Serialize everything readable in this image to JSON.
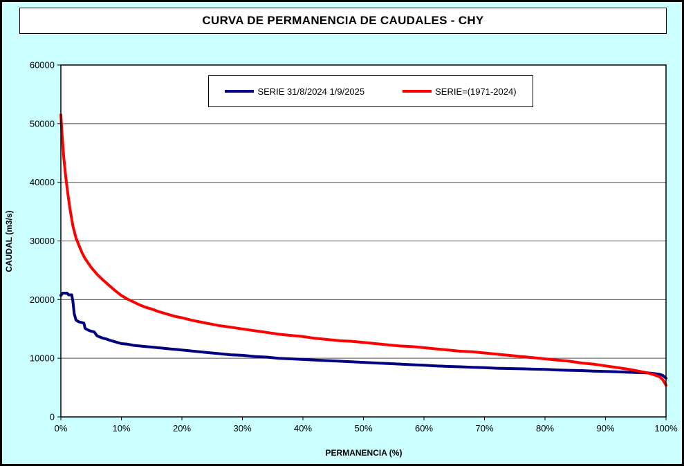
{
  "window": {
    "background": "#CCFFFF",
    "border_color": "#000000"
  },
  "title": {
    "text": "CURVA DE PERMANENCIA DE CAUDALES - CHY"
  },
  "axes": {
    "x": {
      "label": "PERMANENCIA (%)",
      "min": 0,
      "max": 100,
      "tick_values": [
        0,
        10,
        20,
        30,
        40,
        50,
        60,
        70,
        80,
        90,
        100
      ],
      "tick_labels": [
        "0%",
        "10%",
        "20%",
        "30%",
        "40%",
        "50%",
        "60%",
        "70%",
        "80%",
        "90%",
        "100%"
      ]
    },
    "y": {
      "label": "CAUDAL (m3/s)",
      "min": 0,
      "max": 60000,
      "tick_values": [
        0,
        10000,
        20000,
        30000,
        40000,
        50000,
        60000
      ],
      "tick_labels": [
        "0",
        "10000",
        "20000",
        "30000",
        "40000",
        "50000",
        "60000"
      ]
    }
  },
  "legend": {
    "entries": [
      {
        "label": "SERIE 31/8/2024 1/9/2025",
        "color": "#000080"
      },
      {
        "label": "SERIE=(1971-2024)",
        "color": "#FF0000"
      }
    ]
  },
  "chart_data": {
    "type": "line",
    "title": "CURVA DE PERMANENCIA DE CAUDALES - CHY",
    "xlabel": "PERMANENCIA (%)",
    "ylabel": "CAUDAL (m3/s)",
    "xlim": [
      0,
      100
    ],
    "ylim": [
      0,
      60000
    ],
    "grid": "horizontal",
    "legend_position": "top-center-inside",
    "series": [
      {
        "name": "SERIE 31/8/2024 1/9/2025",
        "color": "#000080",
        "points": [
          [
            0,
            20700
          ],
          [
            0.3,
            21100
          ],
          [
            1.0,
            21100
          ],
          [
            1.3,
            20800
          ],
          [
            1.8,
            20800
          ],
          [
            2.0,
            19600
          ],
          [
            2.2,
            17600
          ],
          [
            2.5,
            16500
          ],
          [
            3.0,
            16200
          ],
          [
            3.8,
            16000
          ],
          [
            4.0,
            15100
          ],
          [
            4.5,
            14800
          ],
          [
            5.0,
            14600
          ],
          [
            5.5,
            14500
          ],
          [
            6.0,
            13800
          ],
          [
            6.5,
            13600
          ],
          [
            7.0,
            13400
          ],
          [
            7.5,
            13300
          ],
          [
            8.0,
            13100
          ],
          [
            9.0,
            12800
          ],
          [
            10,
            12500
          ],
          [
            11,
            12400
          ],
          [
            12,
            12200
          ],
          [
            13,
            12100
          ],
          [
            14,
            12000
          ],
          [
            15,
            11900
          ],
          [
            16,
            11800
          ],
          [
            17,
            11700
          ],
          [
            18,
            11600
          ],
          [
            19,
            11500
          ],
          [
            20,
            11400
          ],
          [
            22,
            11200
          ],
          [
            24,
            11000
          ],
          [
            26,
            10800
          ],
          [
            28,
            10600
          ],
          [
            30,
            10500
          ],
          [
            32,
            10300
          ],
          [
            34,
            10200
          ],
          [
            36,
            10000
          ],
          [
            38,
            9900
          ],
          [
            40,
            9800
          ],
          [
            42,
            9700
          ],
          [
            44,
            9600
          ],
          [
            46,
            9500
          ],
          [
            48,
            9400
          ],
          [
            50,
            9300
          ],
          [
            52,
            9200
          ],
          [
            54,
            9100
          ],
          [
            56,
            9000
          ],
          [
            58,
            8900
          ],
          [
            60,
            8800
          ],
          [
            62,
            8700
          ],
          [
            64,
            8600
          ],
          [
            66,
            8550
          ],
          [
            68,
            8450
          ],
          [
            70,
            8400
          ],
          [
            72,
            8300
          ],
          [
            74,
            8250
          ],
          [
            76,
            8200
          ],
          [
            78,
            8150
          ],
          [
            80,
            8100
          ],
          [
            82,
            8000
          ],
          [
            84,
            7950
          ],
          [
            86,
            7900
          ],
          [
            88,
            7800
          ],
          [
            90,
            7750
          ],
          [
            92,
            7700
          ],
          [
            94,
            7600
          ],
          [
            96,
            7550
          ],
          [
            97,
            7500
          ],
          [
            98,
            7400
          ],
          [
            99,
            7250
          ],
          [
            99.5,
            7050
          ],
          [
            100,
            6600
          ]
        ]
      },
      {
        "name": "SERIE=(1971-2024)",
        "color": "#FF0000",
        "points": [
          [
            0,
            51500
          ],
          [
            0.2,
            48000
          ],
          [
            0.5,
            44000
          ],
          [
            0.8,
            41000
          ],
          [
            1.1,
            38500
          ],
          [
            1.5,
            35500
          ],
          [
            2,
            32500
          ],
          [
            2.5,
            30500
          ],
          [
            3,
            29200
          ],
          [
            3.5,
            28000
          ],
          [
            4,
            27000
          ],
          [
            5,
            25500
          ],
          [
            6,
            24300
          ],
          [
            7,
            23300
          ],
          [
            8,
            22400
          ],
          [
            9,
            21500
          ],
          [
            10,
            20700
          ],
          [
            11,
            20100
          ],
          [
            12,
            19600
          ],
          [
            13,
            19100
          ],
          [
            14,
            18700
          ],
          [
            15,
            18400
          ],
          [
            16,
            18000
          ],
          [
            17,
            17700
          ],
          [
            18,
            17400
          ],
          [
            19,
            17100
          ],
          [
            20,
            16900
          ],
          [
            22,
            16400
          ],
          [
            24,
            16000
          ],
          [
            26,
            15600
          ],
          [
            28,
            15300
          ],
          [
            30,
            15000
          ],
          [
            32,
            14700
          ],
          [
            34,
            14400
          ],
          [
            36,
            14100
          ],
          [
            38,
            13900
          ],
          [
            40,
            13700
          ],
          [
            42,
            13400
          ],
          [
            44,
            13200
          ],
          [
            46,
            13000
          ],
          [
            48,
            12900
          ],
          [
            50,
            12700
          ],
          [
            52,
            12500
          ],
          [
            54,
            12300
          ],
          [
            56,
            12100
          ],
          [
            58,
            12000
          ],
          [
            60,
            11800
          ],
          [
            62,
            11600
          ],
          [
            64,
            11400
          ],
          [
            66,
            11200
          ],
          [
            68,
            11100
          ],
          [
            70,
            10900
          ],
          [
            72,
            10700
          ],
          [
            74,
            10500
          ],
          [
            76,
            10300
          ],
          [
            78,
            10100
          ],
          [
            80,
            9900
          ],
          [
            82,
            9700
          ],
          [
            84,
            9500
          ],
          [
            86,
            9200
          ],
          [
            88,
            9000
          ],
          [
            90,
            8700
          ],
          [
            91,
            8550
          ],
          [
            92,
            8400
          ],
          [
            93,
            8250
          ],
          [
            94,
            8100
          ],
          [
            95,
            7900
          ],
          [
            96,
            7700
          ],
          [
            97,
            7500
          ],
          [
            98,
            7200
          ],
          [
            99,
            6800
          ],
          [
            99.5,
            6300
          ],
          [
            100,
            5400
          ]
        ]
      }
    ]
  }
}
